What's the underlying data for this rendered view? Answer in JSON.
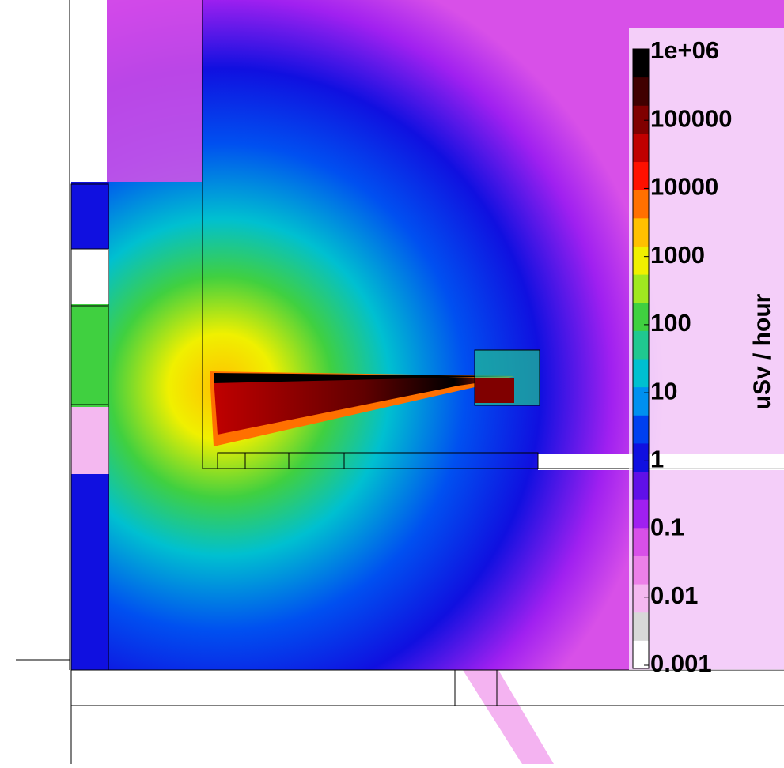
{
  "chart_data": {
    "type": "heatmap",
    "colorbar_label": "uSv / hour",
    "log_scale": true,
    "zlim": [
      0.001,
      1000000
    ],
    "zticks": [
      {
        "value": 1000000,
        "label": "1e+06"
      },
      100000,
      10000,
      1000,
      100,
      10,
      1,
      0.1,
      0.01,
      0.001
    ],
    "colors": [
      "#ffffff",
      "#d8d8d8",
      "#f4b8f0",
      "#ec80e8",
      "#d850e8",
      "#a020f0",
      "#6010e8",
      "#1010e0",
      "#0040f0",
      "#0090f0",
      "#00c0d0",
      "#20c890",
      "#40d040",
      "#a0e820",
      "#f0f000",
      "#ffc000",
      "#ff7000",
      "#ff1000",
      "#c00000",
      "#800000",
      "#400000",
      "#000000"
    ]
  }
}
